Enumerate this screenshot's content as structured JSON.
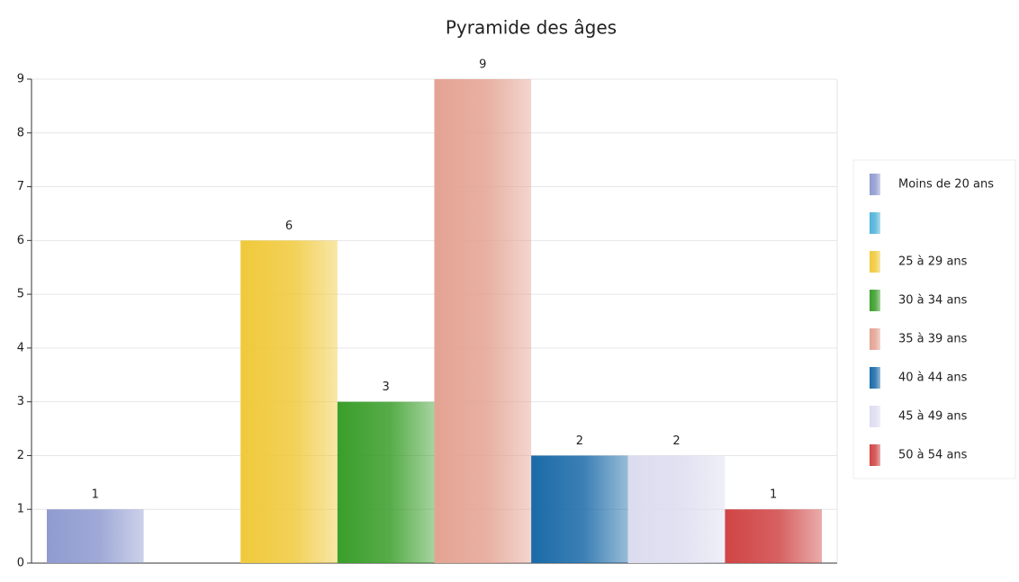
{
  "chart_data": {
    "type": "bar",
    "title": "Pyramide des âges",
    "categories": [
      "Moins de 20 ans",
      null,
      "25 à 29 ans",
      "30 à 34 ans",
      "35 à 39 ans",
      "40 à 44 ans",
      "45 à 49 ans",
      "50 à 54 ans"
    ],
    "values": [
      1,
      null,
      6,
      3,
      9,
      2,
      2,
      1
    ],
    "colors": [
      "#8f9bd0",
      "#4fb3d9",
      "#f0c93a",
      "#3a9e2a",
      "#e4a393",
      "#1a6aa8",
      "#dcdcf0",
      "#d04444"
    ],
    "ylim": [
      0,
      9
    ],
    "yticks": [
      0,
      1,
      2,
      3,
      4,
      5,
      6,
      7,
      8,
      9
    ],
    "grid": true,
    "legend": "right"
  }
}
